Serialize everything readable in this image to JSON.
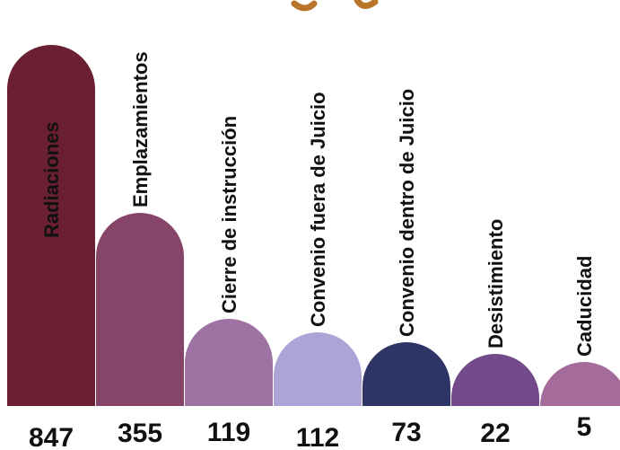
{
  "chart_data": {
    "type": "bar",
    "title": "",
    "xlabel": "",
    "ylabel": "",
    "ylim": [
      0,
      847
    ],
    "grid": false,
    "legend": "none",
    "categories": [
      "Radiaciones",
      "Emplazamientos",
      "Cierre de instrucción",
      "Convenio fuera de Juicio",
      "Convenio dentro de Juicio",
      "Desistimiento",
      "Caducidad"
    ],
    "values": [
      847,
      355,
      119,
      112,
      73,
      22,
      5
    ],
    "value_labels": [
      "847",
      "355",
      "119",
      "112",
      "73",
      "22",
      "5"
    ],
    "colors": [
      "#6b1f33",
      "#864568",
      "#9e72a2",
      "#ada3d6",
      "#2e3566",
      "#73498a",
      "#a56b9a"
    ],
    "title_glyph_color": "#b8752b"
  }
}
